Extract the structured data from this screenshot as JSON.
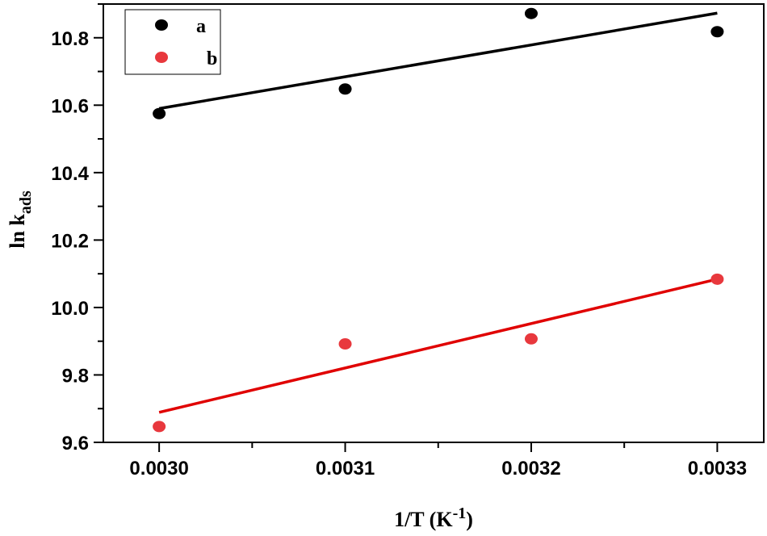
{
  "chart_data": {
    "type": "scatter",
    "xlabel": "1/T (K",
    "xlabel_sup": "-1",
    "xlabel_close": ")",
    "ylabel": "ln k",
    "ylabel_sub": "ads",
    "xlim": [
      0.00297,
      0.003325
    ],
    "ylim": [
      9.6,
      10.9
    ],
    "xticks": [
      0.003,
      0.0031,
      0.0032,
      0.0033
    ],
    "xtick_labels": [
      "0.0030",
      "0.0031",
      "0.0032",
      "0.0033"
    ],
    "yticks": [
      9.6,
      9.8,
      10.0,
      10.2,
      10.4,
      10.6,
      10.8
    ],
    "ytick_labels": [
      "9.6",
      "9.8",
      "10.0",
      "10.2",
      "10.4",
      "10.6",
      "10.8"
    ],
    "legend_position": "top-left",
    "series": [
      {
        "name": "a",
        "color": "#000000",
        "x": [
          0.003,
          0.0031,
          0.0032,
          0.0033
        ],
        "y": [
          10.575,
          10.648,
          10.872,
          10.818
        ],
        "fit": {
          "x": [
            0.003,
            0.0033
          ],
          "y": [
            10.59,
            10.873
          ]
        }
      },
      {
        "name": "b",
        "color": "#e8383d",
        "fit_color": "#e00000",
        "x": [
          0.003,
          0.0031,
          0.0032,
          0.0033
        ],
        "y": [
          9.647,
          9.892,
          9.907,
          10.084
        ],
        "fit": {
          "x": [
            0.003,
            0.0033
          ],
          "y": [
            9.689,
            10.084
          ]
        }
      }
    ]
  }
}
